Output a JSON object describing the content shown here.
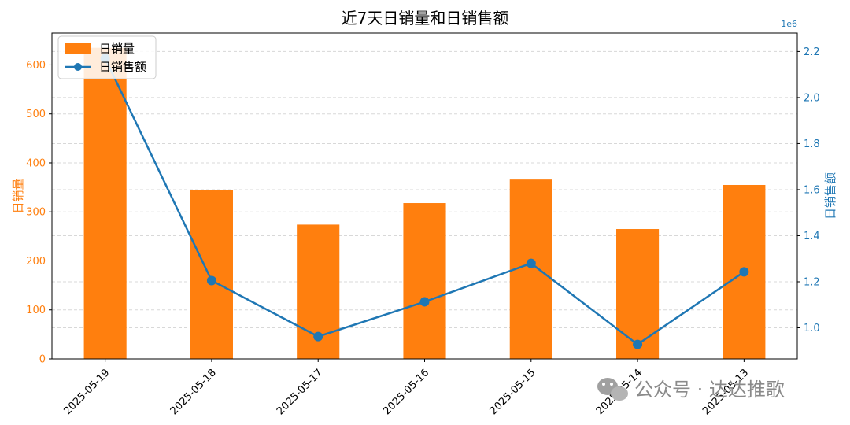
{
  "chart_data": {
    "type": "bar+line",
    "title": "近7天日销量和日销售额",
    "categories": [
      "2025-05-19",
      "2025-05-18",
      "2025-05-17",
      "2025-05-16",
      "2025-05-15",
      "2025-05-14",
      "2025-05-13"
    ],
    "series": [
      {
        "name": "日销量",
        "type": "bar",
        "axis": "left",
        "color": "#ff7f0e",
        "values": [
          635,
          345,
          274,
          318,
          366,
          265,
          355
        ]
      },
      {
        "name": "日销售额",
        "type": "line",
        "axis": "right",
        "color": "#1f77b4",
        "values": [
          2170000,
          1205000,
          962000,
          1113000,
          1280000,
          928000,
          1243000
        ]
      }
    ],
    "left_axis": {
      "label": "日销量",
      "color": "#ff7f0e",
      "ylim": [
        0,
        665
      ],
      "ticks": [
        0,
        100,
        200,
        300,
        400,
        500,
        600
      ]
    },
    "right_axis": {
      "label": "日销售额",
      "color": "#1f77b4",
      "ylim": [
        0.865,
        2.28
      ],
      "ticks": [
        1.0,
        1.2,
        1.4,
        1.6,
        1.8,
        2.0,
        2.2
      ],
      "tick_labels": [
        "1.0",
        "1.2",
        "1.4",
        "1.6",
        "1.8",
        "2.0",
        "2.2"
      ],
      "offset_text": "1e6"
    },
    "grid": true,
    "legend_position": "upper-left"
  },
  "watermark": {
    "text": "公众号 · 达达推歌",
    "icon": "wechat-icon"
  }
}
